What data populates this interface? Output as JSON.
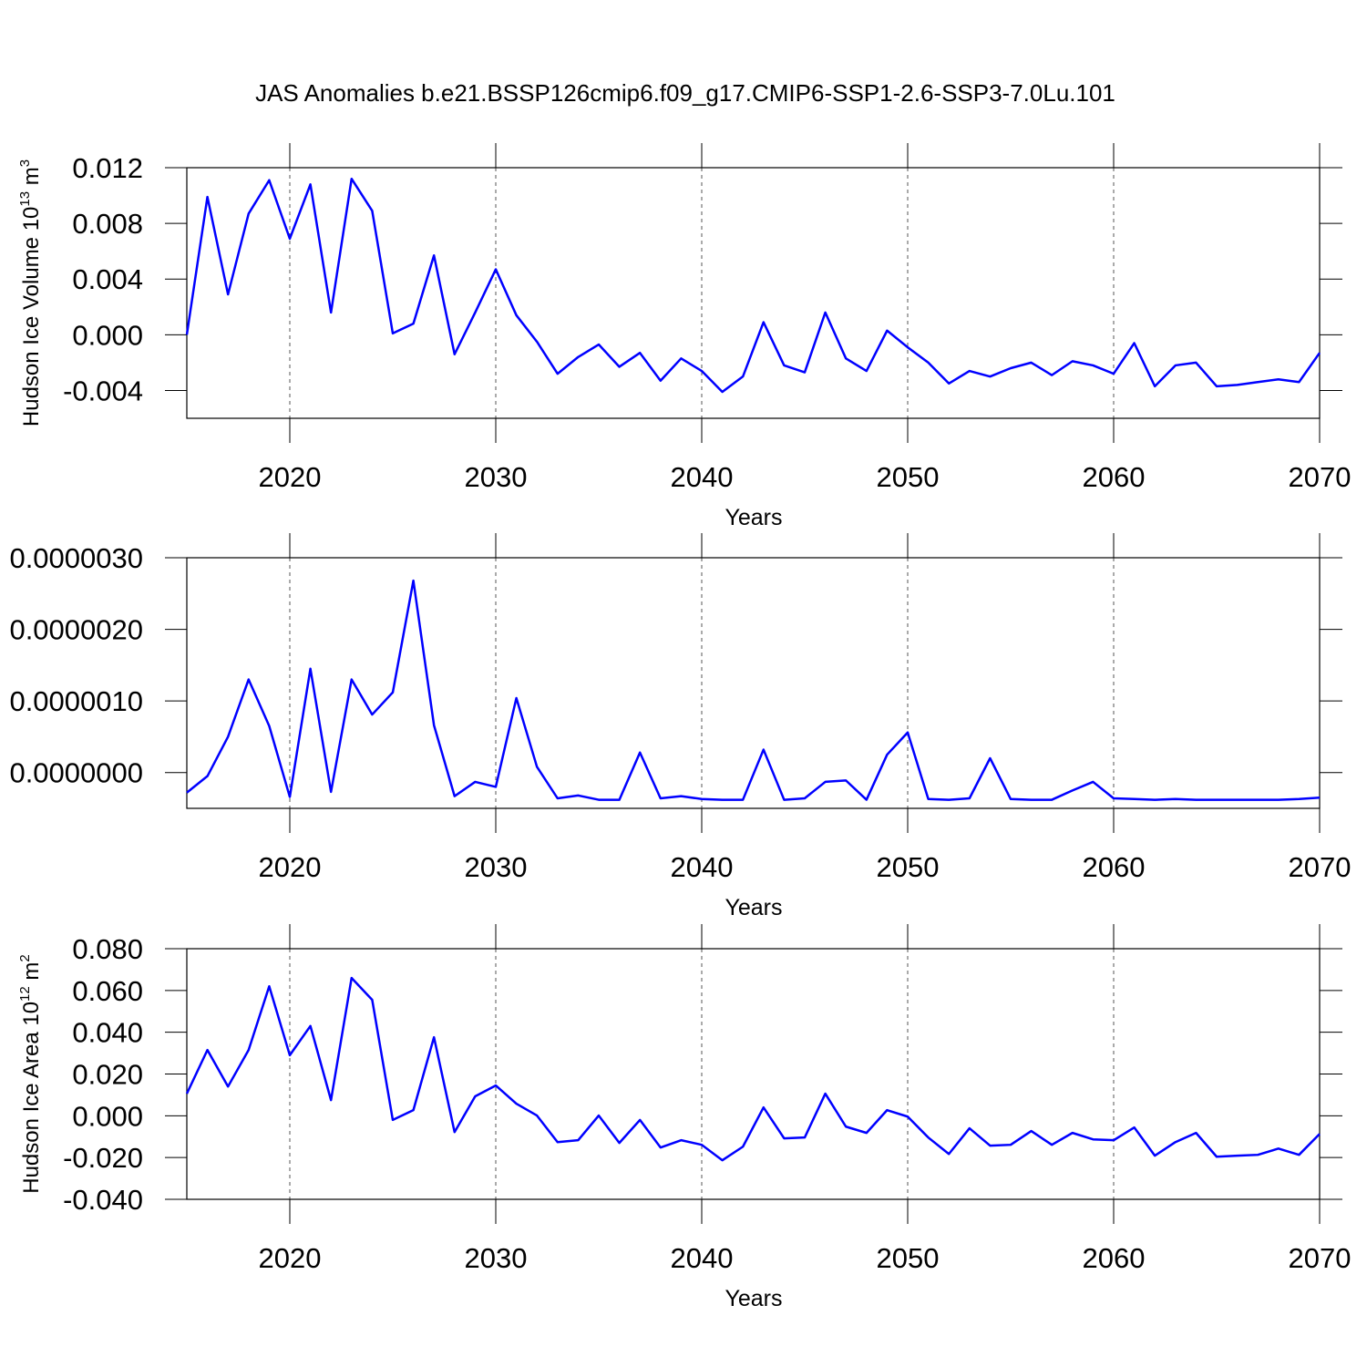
{
  "chart_data": [
    {
      "type": "line",
      "title": "JAS Anomalies b.e21.BSSP126cmip6.f09_g17.CMIP6-SSP1-2.6-SSP3-7.0Lu.101",
      "ylabel": {
        "text": "Hudson Ice Volume 10",
        "power": "13",
        "unit": " m",
        "unit_power": "3"
      },
      "xlabel": "Years",
      "color": "#0000ff",
      "grid": "x",
      "x": [
        2015,
        2016,
        2017,
        2018,
        2019,
        2020,
        2021,
        2022,
        2023,
        2024,
        2025,
        2026,
        2027,
        2028,
        2029,
        2030,
        2031,
        2032,
        2033,
        2034,
        2035,
        2036,
        2037,
        2038,
        2039,
        2040,
        2041,
        2042,
        2043,
        2044,
        2045,
        2046,
        2047,
        2048,
        2049,
        2050,
        2051,
        2052,
        2053,
        2054,
        2055,
        2056,
        2057,
        2058,
        2059,
        2060,
        2061,
        2062,
        2063,
        2064,
        2065,
        2066,
        2067,
        2068,
        2069,
        2070
      ],
      "values": [
        0.0,
        0.0099,
        0.0029,
        0.0087,
        0.0111,
        0.0069,
        0.0108,
        0.0016,
        0.0112,
        0.0089,
        0.0001,
        0.0008,
        0.0057,
        -0.0014,
        0.0016,
        0.0047,
        0.0014,
        -0.0005,
        -0.0028,
        -0.0016,
        -0.0007,
        -0.0023,
        -0.0013,
        -0.0033,
        -0.0017,
        -0.0026,
        -0.0041,
        -0.003,
        0.0009,
        -0.0022,
        -0.0027,
        0.0016,
        -0.0017,
        -0.0026,
        0.0003,
        -0.0009,
        -0.002,
        -0.0035,
        -0.0026,
        -0.003,
        -0.0024,
        -0.002,
        -0.0029,
        -0.0019,
        -0.0022,
        -0.0028,
        -0.0006,
        -0.0037,
        -0.0022,
        -0.002,
        -0.0037,
        -0.0036,
        -0.0034,
        -0.0032,
        -0.0034,
        -0.0013
      ],
      "xlim": [
        2015,
        2070
      ],
      "xticks": [
        2020,
        2030,
        2040,
        2050,
        2060,
        2070
      ],
      "ylim": [
        -0.006,
        0.012
      ],
      "yticks": [
        -0.004,
        {
          "value": 0,
          "label": "0.000"
        },
        0.004,
        0.008,
        0.012
      ]
    },
    {
      "type": "line",
      "xlabel": "Years",
      "color": "#0000ff",
      "grid": "x",
      "x": [
        2015,
        2016,
        2017,
        2018,
        2019,
        2020,
        2021,
        2022,
        2023,
        2024,
        2025,
        2026,
        2027,
        2028,
        2029,
        2030,
        2031,
        2032,
        2033,
        2034,
        2035,
        2036,
        2037,
        2038,
        2039,
        2040,
        2041,
        2042,
        2043,
        2044,
        2045,
        2046,
        2047,
        2048,
        2049,
        2050,
        2051,
        2052,
        2053,
        2054,
        2055,
        2056,
        2057,
        2058,
        2059,
        2060,
        2061,
        2062,
        2063,
        2064,
        2065,
        2066,
        2067,
        2068,
        2069,
        2070
      ],
      "values": [
        -2.8e-07,
        -5e-08,
        5e-07,
        1.3e-06,
        6.5e-07,
        -3.4e-07,
        1.45e-06,
        -2.7e-07,
        1.3e-06,
        8.1e-07,
        1.12e-06,
        2.68e-06,
        6.6e-07,
        -3.3e-07,
        -1.3e-07,
        -2e-07,
        1.04e-06,
        8e-08,
        -3.6e-07,
        -3.2e-07,
        -3.8e-07,
        -3.8e-07,
        2.8e-07,
        -3.6e-07,
        -3.3e-07,
        -3.7e-07,
        -3.8e-07,
        -3.8e-07,
        3.2e-07,
        -3.8e-07,
        -3.6e-07,
        -1.3e-07,
        -1.1e-07,
        -3.8e-07,
        2.5e-07,
        5.6e-07,
        -3.7e-07,
        -3.8e-07,
        -3.6e-07,
        2e-07,
        -3.7e-07,
        -3.8e-07,
        -3.8e-07,
        -2.5e-07,
        -1.3e-07,
        -3.6e-07,
        -3.7e-07,
        -3.8e-07,
        -3.7e-07,
        -3.8e-07,
        -3.8e-07,
        -3.8e-07,
        -3.8e-07,
        -3.8e-07,
        -3.7e-07,
        -3.5e-07
      ],
      "xlim": [
        2015,
        2070
      ],
      "xticks": [
        2020,
        2030,
        2040,
        2050,
        2060,
        2070
      ],
      "ylim": [
        -5e-07,
        3e-06
      ],
      "yticks": [
        {
          "value": 0,
          "label": "0.0000000"
        },
        {
          "value": 1e-06,
          "label": "0.0000010"
        },
        {
          "value": 2e-06,
          "label": "0.0000020"
        },
        {
          "value": 3e-06,
          "label": "0.0000030"
        }
      ]
    },
    {
      "type": "line",
      "ylabel": {
        "text": "Hudson Ice Area 10",
        "power": "12",
        "unit": " m",
        "unit_power": "2"
      },
      "xlabel": "Years",
      "color": "#0000ff",
      "grid": "x",
      "x": [
        2015,
        2016,
        2017,
        2018,
        2019,
        2020,
        2021,
        2022,
        2023,
        2024,
        2025,
        2026,
        2027,
        2028,
        2029,
        2030,
        2031,
        2032,
        2033,
        2034,
        2035,
        2036,
        2037,
        2038,
        2039,
        2040,
        2041,
        2042,
        2043,
        2044,
        2045,
        2046,
        2047,
        2048,
        2049,
        2050,
        2051,
        2052,
        2053,
        2054,
        2055,
        2056,
        2057,
        2058,
        2059,
        2060,
        2061,
        2062,
        2063,
        2064,
        2065,
        2066,
        2067,
        2068,
        2069,
        2070
      ],
      "values": [
        0.0106,
        0.0315,
        0.014,
        0.0315,
        0.062,
        0.029,
        0.043,
        0.0075,
        0.066,
        0.0555,
        -0.002,
        0.0027,
        0.0376,
        -0.0078,
        0.0093,
        0.0145,
        0.0058,
        0.0001,
        -0.0126,
        -0.0117,
        0.0001,
        -0.013,
        -0.002,
        -0.0152,
        -0.0117,
        -0.0139,
        -0.0213,
        -0.0148,
        0.004,
        -0.0108,
        -0.0104,
        0.0106,
        -0.0052,
        -0.0082,
        0.0027,
        -0.0004,
        -0.0104,
        -0.0183,
        -0.006,
        -0.0143,
        -0.0139,
        -0.0073,
        -0.0139,
        -0.0082,
        -0.0113,
        -0.0117,
        -0.0056,
        -0.0191,
        -0.0126,
        -0.0082,
        -0.0196,
        -0.0191,
        -0.0187,
        -0.0157,
        -0.0187,
        -0.0087
      ],
      "xlim": [
        2015,
        2070
      ],
      "xticks": [
        2020,
        2030,
        2040,
        2050,
        2060,
        2070
      ],
      "ylim": [
        -0.04,
        0.08
      ],
      "yticks": [
        {
          "value": -0.04,
          "label": "-0.040"
        },
        {
          "value": -0.02,
          "label": "-0.020"
        },
        {
          "value": 0,
          "label": "0.000"
        },
        {
          "value": 0.02,
          "label": "0.020"
        },
        {
          "value": 0.04,
          "label": "0.040"
        },
        {
          "value": 0.06,
          "label": "0.060"
        },
        {
          "value": 0.08,
          "label": "0.080"
        }
      ]
    }
  ]
}
